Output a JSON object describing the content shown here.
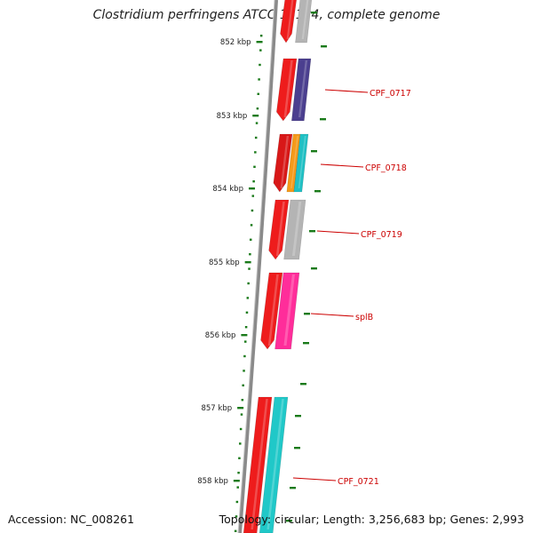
{
  "title": "Clostridium perfringens ATCC 13124, complete genome",
  "footer": {
    "accession": "Accession: NC_008261",
    "summary": "Topology: circular; Length: 3,256,683 bp; Genes: 2,993"
  },
  "ruler": {
    "labels": [
      "852 kbp",
      "853 kbp",
      "854 kbp",
      "855 kbp",
      "856 kbp",
      "857 kbp",
      "858 kbp"
    ],
    "color": "#1a7a1a"
  },
  "genes": [
    {
      "label": "",
      "colors": [
        "#ee1c1c",
        "#b4b4b4"
      ]
    },
    {
      "label": "CPF_0717",
      "colors": [
        "#ee1c1c",
        "#4b3f8f"
      ]
    },
    {
      "label": "CPF_0718",
      "colors": [
        "#d81818",
        "#f59a1a",
        "#20c0c4"
      ]
    },
    {
      "label": "CPF_0719",
      "colors": [
        "#ee1c1c",
        "#b4b4b4"
      ]
    },
    {
      "label": "splB",
      "colors": [
        "#ee1c1c",
        "#ff2d9a"
      ]
    },
    {
      "label": "CPF_0721",
      "colors": [
        "#ee1c1c",
        "#20c8c8"
      ]
    }
  ],
  "colors": {
    "label": "#cc0000",
    "backbone": "#8a8a8a"
  }
}
